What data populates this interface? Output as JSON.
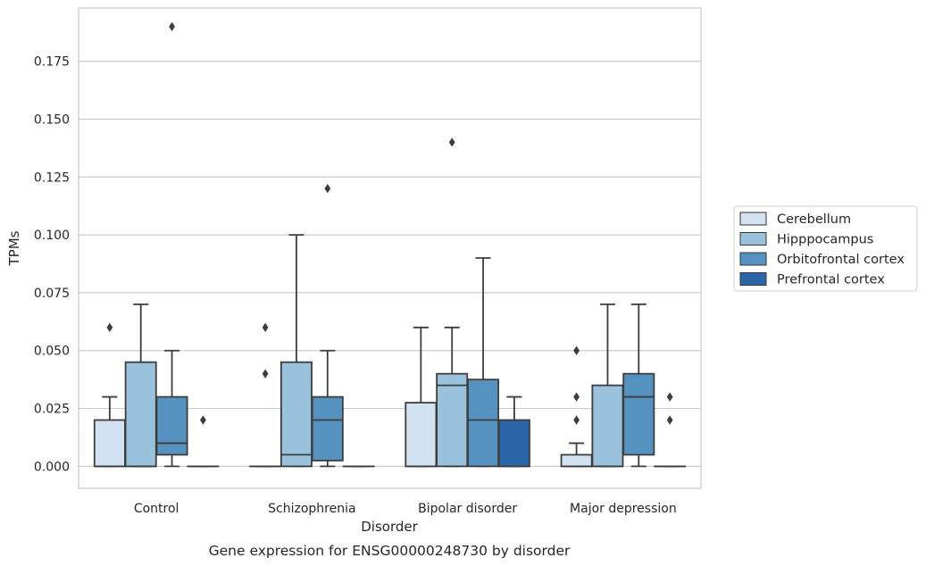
{
  "chart_data": {
    "type": "box",
    "caption": "Gene expression for ENSG00000248730 by disorder",
    "xlabel": "Disorder",
    "ylabel": "TPMs",
    "ylim": [
      -0.0095,
      0.198
    ],
    "yticks": [
      "0.000",
      "0.025",
      "0.050",
      "0.075",
      "0.100",
      "0.125",
      "0.150",
      "0.175"
    ],
    "grid": "horizontal",
    "legend_position": "right",
    "categories": [
      "Control",
      "Schizophrenia",
      "Bipolar disorder",
      "Major depression"
    ],
    "series": [
      {
        "name": "Cerebellum",
        "color": "#d3e2f0",
        "boxes": [
          {
            "min": 0.0,
            "q1": 0.0,
            "median": 0.0,
            "q3": 0.02,
            "max": 0.03,
            "outliers": [
              0.06
            ]
          },
          {
            "min": 0.0,
            "q1": 0.0,
            "median": 0.0,
            "q3": 0.0,
            "max": 0.0,
            "outliers": [
              0.04,
              0.06
            ]
          },
          {
            "min": 0.0,
            "q1": 0.0,
            "median": 0.0,
            "q3": 0.0275,
            "max": 0.06,
            "outliers": []
          },
          {
            "min": 0.0,
            "q1": 0.0,
            "median": 0.0,
            "q3": 0.005,
            "max": 0.01,
            "outliers": [
              0.02,
              0.03,
              0.05
            ]
          }
        ]
      },
      {
        "name": "Hipppocampus",
        "color": "#9ac2dc",
        "boxes": [
          {
            "min": 0.0,
            "q1": 0.0,
            "median": 0.0,
            "q3": 0.045,
            "max": 0.07,
            "outliers": []
          },
          {
            "min": 0.0,
            "q1": 0.0,
            "median": 0.005,
            "q3": 0.045,
            "max": 0.1,
            "outliers": []
          },
          {
            "min": 0.0,
            "q1": 0.0,
            "median": 0.035,
            "q3": 0.04,
            "max": 0.06,
            "outliers": [
              0.14
            ]
          },
          {
            "min": 0.0,
            "q1": 0.0,
            "median": 0.0,
            "q3": 0.035,
            "max": 0.07,
            "outliers": []
          }
        ]
      },
      {
        "name": "Orbitofrontal cortex",
        "color": "#5592c0",
        "boxes": [
          {
            "min": 0.0,
            "q1": 0.005,
            "median": 0.01,
            "q3": 0.03,
            "max": 0.05,
            "outliers": [
              0.19
            ]
          },
          {
            "min": 0.0,
            "q1": 0.0025,
            "median": 0.02,
            "q3": 0.03,
            "max": 0.05,
            "outliers": [
              0.12
            ]
          },
          {
            "min": 0.0,
            "q1": 0.0,
            "median": 0.02,
            "q3": 0.0375,
            "max": 0.09,
            "outliers": []
          },
          {
            "min": 0.0,
            "q1": 0.005,
            "median": 0.03,
            "q3": 0.04,
            "max": 0.07,
            "outliers": []
          }
        ]
      },
      {
        "name": "Prefrontal cortex",
        "color": "#2a66a8",
        "boxes": [
          {
            "min": 0.0,
            "q1": 0.0,
            "median": 0.0,
            "q3": 0.0,
            "max": 0.0,
            "outliers": [
              0.02
            ]
          },
          {
            "min": 0.0,
            "q1": 0.0,
            "median": 0.0,
            "q3": 0.0,
            "max": 0.0,
            "outliers": []
          },
          {
            "min": 0.0,
            "q1": 0.0,
            "median": 0.0,
            "q3": 0.02,
            "max": 0.03,
            "outliers": []
          },
          {
            "min": 0.0,
            "q1": 0.0,
            "median": 0.0,
            "q3": 0.0,
            "max": 0.0,
            "outliers": [
              0.02,
              0.03
            ]
          }
        ]
      }
    ]
  }
}
